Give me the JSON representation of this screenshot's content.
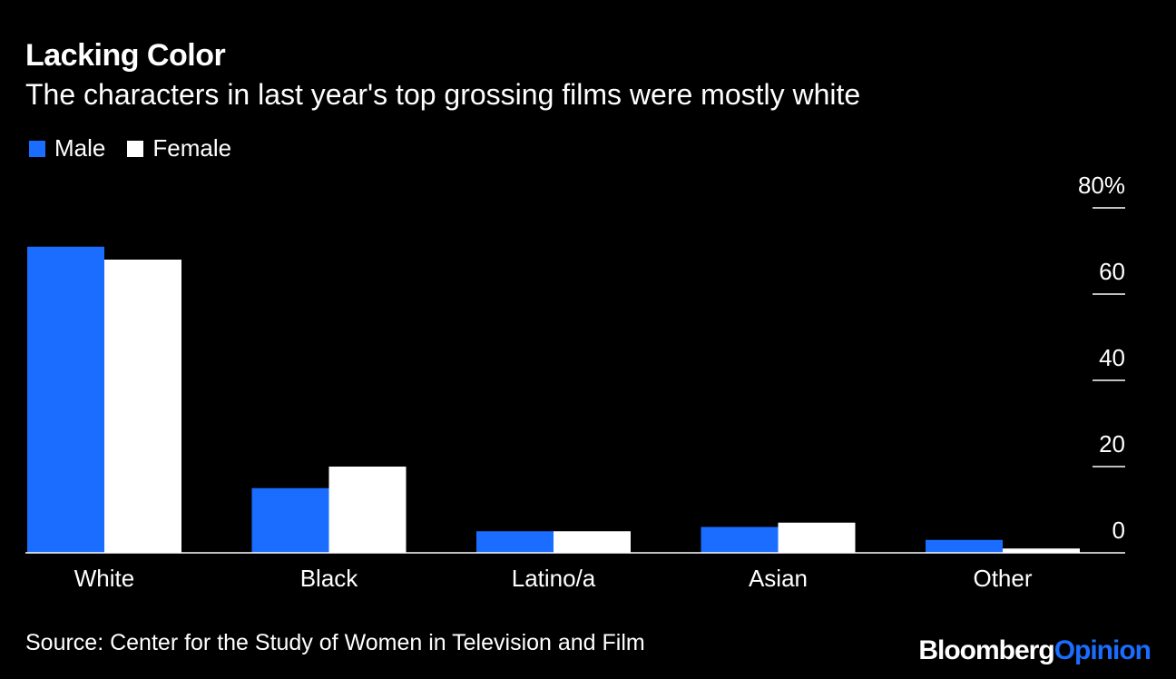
{
  "chart_data": {
    "type": "bar",
    "title": "Lacking Color",
    "subtitle": "The characters in last year's top grossing films were mostly white",
    "categories": [
      "White",
      "Black",
      "Latino/a",
      "Asian",
      "Other"
    ],
    "series": [
      {
        "name": "Male",
        "color": "#1a6dff",
        "values": [
          71,
          15,
          5,
          6,
          3
        ]
      },
      {
        "name": "Female",
        "color": "#ffffff",
        "values": [
          68,
          20,
          5,
          7,
          1
        ]
      }
    ],
    "y_ticks": [
      {
        "value": 80,
        "label": "80%"
      },
      {
        "value": 60,
        "label": "60"
      },
      {
        "value": 40,
        "label": "40"
      },
      {
        "value": 20,
        "label": "20"
      },
      {
        "value": 0,
        "label": "0"
      }
    ],
    "ylim": [
      0,
      80
    ],
    "xlabel": "",
    "ylabel": "",
    "legend_position": "top-left",
    "grid": false
  },
  "footer": {
    "source": "Source: Center for the Study of Women in Television and Film",
    "brand_primary": "Bloomberg",
    "brand_secondary": "Opinion"
  }
}
